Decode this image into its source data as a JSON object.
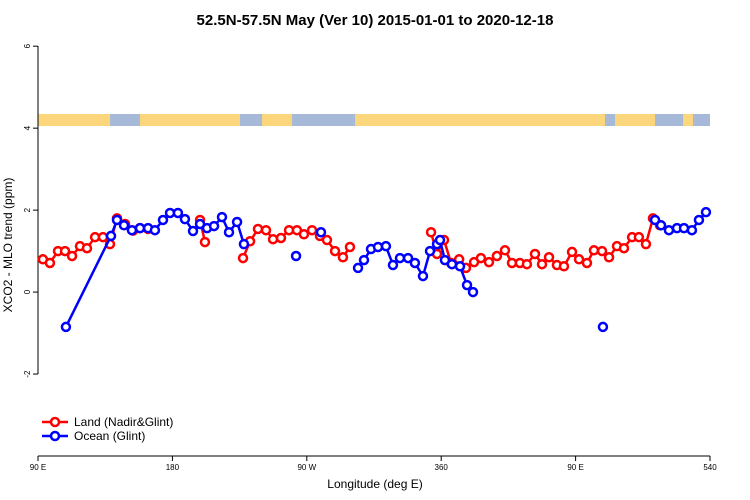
{
  "chart_data": {
    "type": "line",
    "title": "52.5N-57.5N May (Ver 10)   2015-01-01 to 2020-12-18",
    "x_label": "Longitude (deg E)",
    "y_label": "XCO2 - MLO trend (ppm)",
    "xlim": [
      90,
      540
    ],
    "ylim": [
      -4,
      6.2
    ],
    "xticks": [
      {
        "value": 90,
        "label": "90 E"
      },
      180,
      {
        "value": 270,
        "label": "90 W"
      },
      360,
      {
        "value": 450,
        "label": "90 E"
      },
      540
    ],
    "yticks": [
      -2,
      0,
      2,
      4,
      6
    ],
    "legend": "bottom-left",
    "series": [
      {
        "name": "Land (Nadir&Glint)",
        "color": "#ff0000",
        "x": [
          93.3,
          98.0,
          103.4,
          108.1,
          112.8,
          118.1,
          122.8,
          128.2,
          133.5,
          138.2,
          142.9,
          148.3,
          153.6,
          158.3,
          163.7,
          null,
          198.5,
          201.8,
          null,
          227.3,
          232.0,
          237.3,
          242.7,
          247.4,
          252.7,
          258.1,
          263.4,
          268.1,
          273.5,
          278.8,
          283.5,
          288.9,
          294.2,
          298.9,
          null,
          353.2,
          357.2,
          361.9,
          366.6,
          372.0,
          376.6,
          382.0,
          386.6,
          392.0,
          397.3,
          402.7,
          407.4,
          412.7,
          417.4,
          422.8,
          427.5,
          432.2,
          437.5,
          442.2,
          447.6,
          452.3,
          457.6,
          462.3,
          467.7,
          472.4,
          477.7,
          482.4,
          487.8,
          492.4,
          497.1,
          501.8,
          506.5
        ],
        "values": [
          0.8,
          0.71,
          1.0,
          1.0,
          0.88,
          1.12,
          1.07,
          1.34,
          1.34,
          1.17,
          1.8,
          1.66,
          1.5,
          1.56,
          1.54,
          null,
          1.76,
          1.22,
          null,
          0.83,
          1.24,
          1.54,
          1.51,
          1.29,
          1.32,
          1.51,
          1.51,
          1.41,
          1.51,
          1.37,
          1.27,
          1.0,
          0.85,
          1.1,
          null,
          1.46,
          0.93,
          1.27,
          0.71,
          0.8,
          0.59,
          0.73,
          0.83,
          0.73,
          0.88,
          1.02,
          0.71,
          0.71,
          0.68,
          0.93,
          0.68,
          0.85,
          0.66,
          0.63,
          0.98,
          0.8,
          0.71,
          1.02,
          1.0,
          0.85,
          1.12,
          1.07,
          1.34,
          1.34,
          1.17,
          1.8,
          1.63
        ]
      },
      {
        "name": "Ocean (Glint)",
        "color": "#0000ff",
        "x": [
          108.7,
          138.9,
          142.9,
          147.6,
          152.9,
          158.3,
          163.7,
          168.3,
          173.7,
          178.4,
          183.7,
          188.4,
          193.8,
          198.5,
          203.2,
          207.9,
          213.2,
          217.9,
          223.3,
          227.9,
          null,
          262.8,
          null,
          279.5,
          null,
          304.3,
          308.3,
          313.0,
          317.7,
          323.0,
          327.7,
          332.4,
          337.8,
          342.4,
          347.8,
          352.5,
          357.2,
          359.2,
          362.5,
          367.2,
          372.6,
          377.3,
          381.3,
          null,
          468.3,
          null,
          503.2,
          507.2,
          512.5,
          517.9,
          522.6,
          527.9,
          532.6,
          537.3
        ],
        "values": [
          -0.85,
          1.37,
          1.76,
          1.63,
          1.51,
          1.56,
          1.56,
          1.51,
          1.76,
          1.93,
          1.93,
          1.78,
          1.49,
          1.66,
          1.56,
          1.61,
          1.83,
          1.46,
          1.71,
          1.17,
          null,
          0.88,
          null,
          1.46,
          null,
          0.59,
          0.78,
          1.05,
          1.1,
          1.12,
          0.66,
          0.83,
          0.83,
          0.71,
          0.39,
          1.0,
          1.17,
          1.27,
          0.78,
          0.68,
          0.63,
          0.17,
          0.0,
          null,
          -0.85,
          null,
          1.76,
          1.63,
          1.51,
          1.56,
          1.56,
          1.51,
          1.76,
          1.95
        ]
      }
    ]
  }
}
